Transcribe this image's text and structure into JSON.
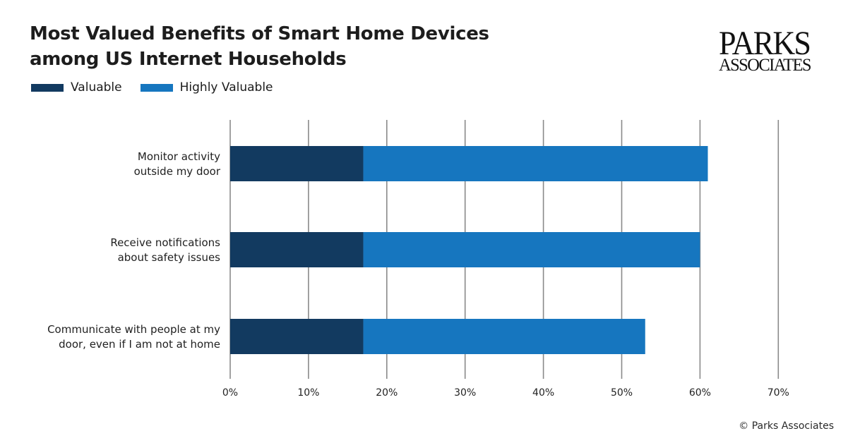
{
  "title_line1": "Most Valued Benefits of Smart Home Devices",
  "title_line2": "among US Internet Households",
  "logo_line1": "PARKS",
  "logo_line2": "ASSOCIATES",
  "footer": "© Parks Associates",
  "colors": {
    "valuable": "#123a60",
    "highly_valuable": "#1676bf",
    "grid": "#8a8a8a"
  },
  "chart_data": {
    "type": "bar",
    "orientation": "horizontal",
    "stacked": true,
    "title": "Most Valued Benefits of Smart Home Devices among US Internet Households",
    "categories": [
      [
        "Monitor activity",
        "outside my door"
      ],
      [
        "Receive notifications",
        "about safety issues"
      ],
      [
        "Communicate with people at my",
        "door, even if I am not at home"
      ]
    ],
    "series": [
      {
        "name": "Valuable",
        "values": [
          17,
          17,
          17
        ]
      },
      {
        "name": "Highly Valuable",
        "values": [
          44,
          43,
          36
        ]
      }
    ],
    "xlim": [
      0,
      70
    ],
    "xticks": [
      "0%",
      "10%",
      "20%",
      "30%",
      "40%",
      "50%",
      "60%",
      "70%"
    ],
    "grid": true,
    "legend_position": "top-left"
  }
}
